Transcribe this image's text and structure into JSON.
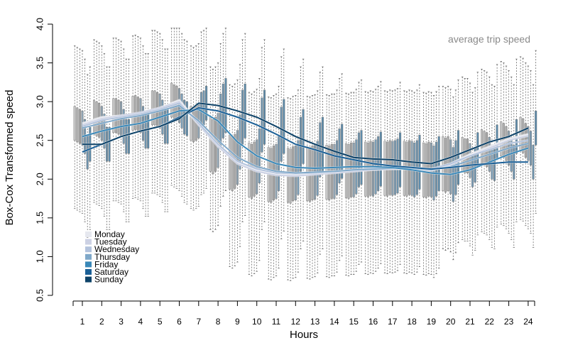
{
  "chart_data": {
    "type": "line",
    "annotation": "average trip speed",
    "xlabel": "Hours",
    "ylabel": "Box-Cox Transformed speed",
    "x_ticks": [
      "1",
      "2",
      "3",
      "4",
      "5",
      "6",
      "7",
      "8",
      "9",
      "10",
      "11",
      "12",
      "13",
      "14",
      "15",
      "16",
      "17",
      "18",
      "19",
      "20",
      "21",
      "22",
      "23",
      "24"
    ],
    "y_ticks": [
      "0.5",
      "1.0",
      "1.5",
      "2.0",
      "2.5",
      "3.0",
      "3.5",
      "4.0"
    ],
    "ylim": [
      0.5,
      4.0
    ],
    "xlim": [
      0.5,
      24.5
    ],
    "grid": false,
    "legend_position": "bottom-left",
    "x": [
      1,
      2,
      3,
      4,
      5,
      6,
      7,
      8,
      9,
      10,
      11,
      12,
      13,
      14,
      15,
      16,
      17,
      18,
      19,
      20,
      21,
      22,
      23,
      24
    ],
    "series": [
      {
        "name": "Monday",
        "color": "#e6e8ef",
        "values": [
          2.72,
          2.8,
          2.82,
          2.85,
          2.92,
          3.02,
          2.72,
          2.45,
          2.22,
          2.12,
          2.06,
          2.05,
          2.07,
          2.09,
          2.11,
          2.13,
          2.14,
          2.14,
          2.12,
          2.2,
          2.32,
          2.42,
          2.52,
          2.58
        ]
      },
      {
        "name": "Tuesday",
        "color": "#ccd1e4",
        "values": [
          2.7,
          2.78,
          2.82,
          2.86,
          2.92,
          3.0,
          2.7,
          2.42,
          2.2,
          2.1,
          2.05,
          2.04,
          2.06,
          2.08,
          2.1,
          2.12,
          2.13,
          2.13,
          2.11,
          2.18,
          2.3,
          2.4,
          2.5,
          2.56
        ]
      },
      {
        "name": "Wednesday",
        "color": "#b3c3dd",
        "values": [
          2.68,
          2.76,
          2.8,
          2.84,
          2.9,
          2.98,
          2.72,
          2.45,
          2.23,
          2.13,
          2.08,
          2.07,
          2.08,
          2.1,
          2.12,
          2.14,
          2.15,
          2.15,
          2.13,
          2.2,
          2.3,
          2.38,
          2.46,
          2.5
        ]
      },
      {
        "name": "Thursday",
        "color": "#7fa8c9",
        "values": [
          2.66,
          2.72,
          2.78,
          2.82,
          2.88,
          2.95,
          2.75,
          2.5,
          2.28,
          2.16,
          2.1,
          2.08,
          2.09,
          2.1,
          2.12,
          2.13,
          2.14,
          2.14,
          2.12,
          2.16,
          2.24,
          2.32,
          2.4,
          2.46
        ]
      },
      {
        "name": "Friday",
        "color": "#3a88b8",
        "values": [
          2.55,
          2.62,
          2.68,
          2.72,
          2.8,
          2.88,
          2.9,
          2.75,
          2.48,
          2.3,
          2.2,
          2.15,
          2.14,
          2.15,
          2.16,
          2.16,
          2.15,
          2.12,
          2.08,
          2.06,
          2.12,
          2.22,
          2.32,
          2.4
        ]
      },
      {
        "name": "Saturday",
        "color": "#1a5f96",
        "values": [
          2.35,
          2.45,
          2.55,
          2.62,
          2.68,
          2.8,
          2.92,
          2.88,
          2.8,
          2.7,
          2.58,
          2.45,
          2.38,
          2.3,
          2.25,
          2.2,
          2.17,
          2.15,
          2.13,
          2.15,
          2.18,
          2.2,
          2.22,
          2.22
        ]
      },
      {
        "name": "Sunday",
        "color": "#0d4268",
        "values": [
          2.45,
          2.45,
          2.55,
          2.62,
          2.68,
          2.78,
          2.98,
          2.95,
          2.88,
          2.8,
          2.68,
          2.55,
          2.45,
          2.36,
          2.28,
          2.26,
          2.25,
          2.22,
          2.2,
          2.28,
          2.38,
          2.48,
          2.55,
          2.66
        ]
      }
    ]
  }
}
